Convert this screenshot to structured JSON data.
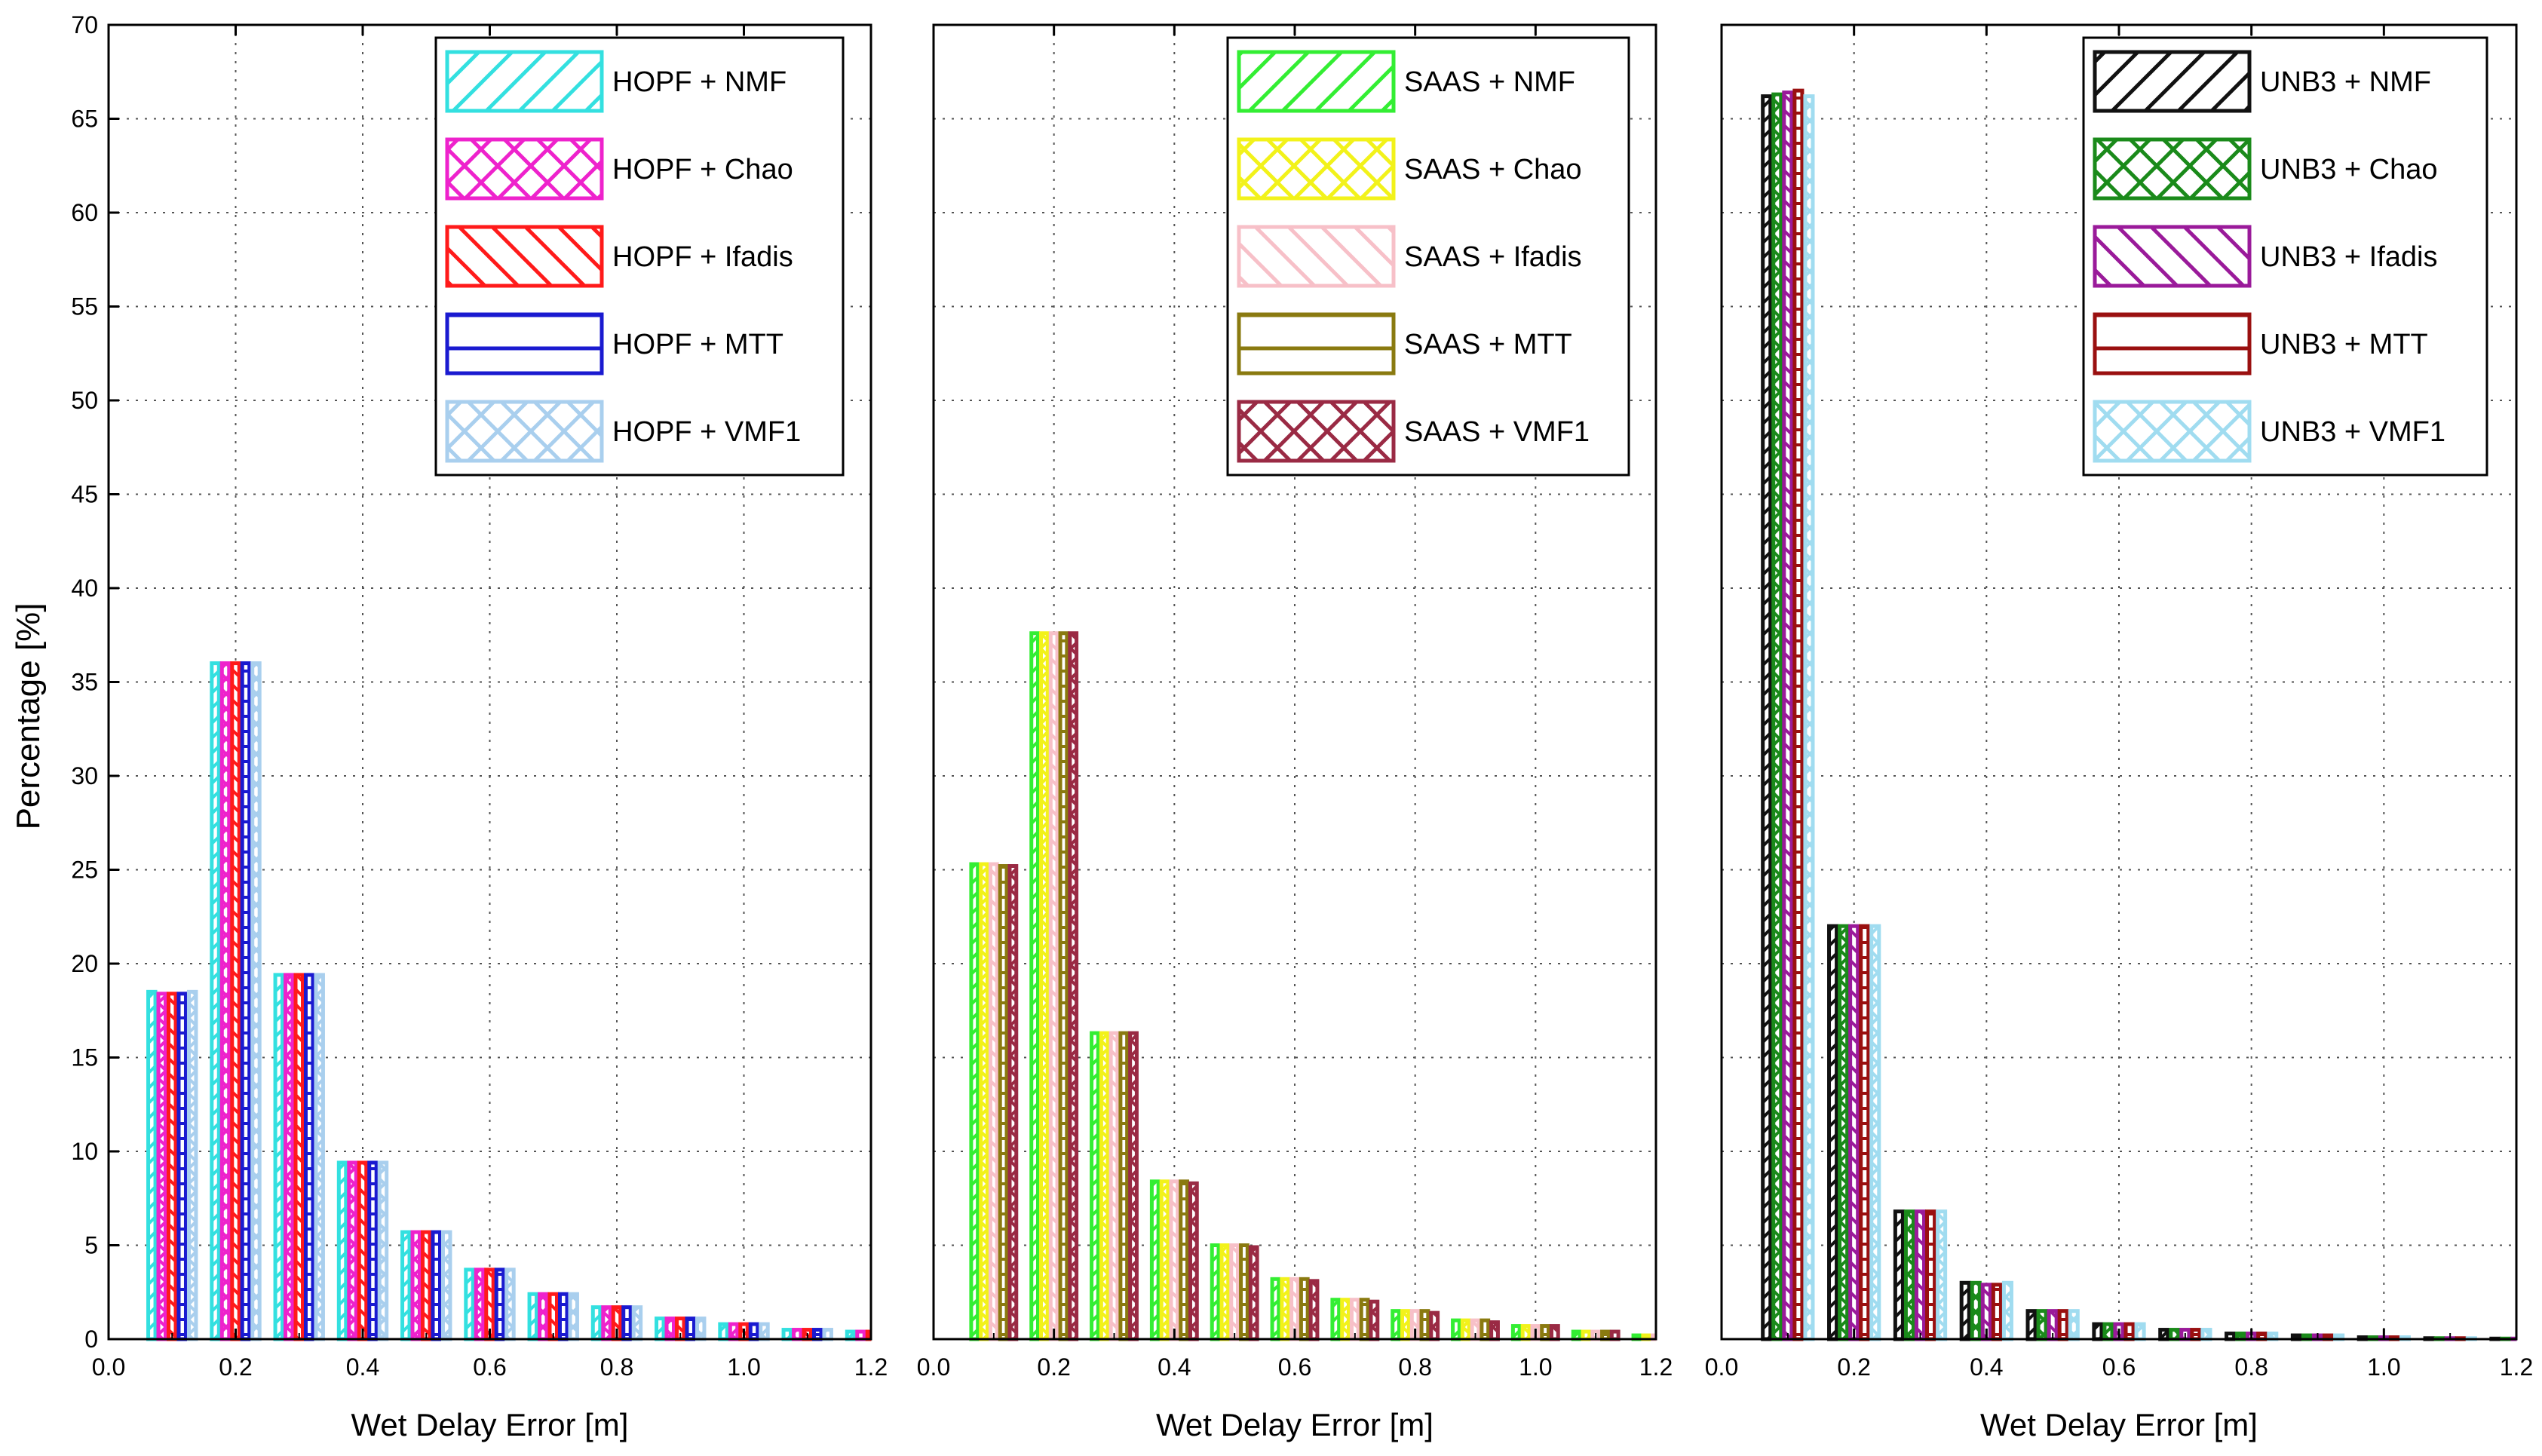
{
  "figure": {
    "ylabel": "Percentage [%]"
  },
  "chart_data": [
    {
      "type": "bar",
      "title": "",
      "xlabel": "Wet Delay Error [m]",
      "ylabel": "Percentage [%]",
      "xlim": [
        0.0,
        1.2
      ],
      "ylim": [
        0,
        70
      ],
      "xticks": [
        "0.0",
        "0.2",
        "0.4",
        "0.6",
        "0.8",
        "1.0",
        "1.2"
      ],
      "yticks": [
        "0",
        "5",
        "10",
        "15",
        "20",
        "25",
        "30",
        "35",
        "40",
        "45",
        "50",
        "55",
        "60",
        "65",
        "70"
      ],
      "grid": true,
      "legend_position": "top-right",
      "bin_centers": [
        0.1,
        0.2,
        0.3,
        0.4,
        0.5,
        0.6,
        0.7,
        0.8,
        0.9,
        1.0,
        1.1,
        1.2
      ],
      "bin_width": 0.1,
      "series": [
        {
          "name": "HOPF + NMF",
          "color": "#33e0e0",
          "pattern": "diag-fwd",
          "values": [
            18.5,
            36.0,
            19.4,
            9.4,
            5.7,
            3.7,
            2.4,
            1.7,
            1.1,
            0.8,
            0.5,
            0.4
          ]
        },
        {
          "name": "HOPF + Chao",
          "color": "#ee22cc",
          "pattern": "cross-hatch",
          "values": [
            18.4,
            36.0,
            19.4,
            9.4,
            5.7,
            3.7,
            2.4,
            1.7,
            1.1,
            0.8,
            0.5,
            0.4
          ]
        },
        {
          "name": "HOPF + Ifadis",
          "color": "#ff1a1a",
          "pattern": "diag-back",
          "values": [
            18.4,
            36.0,
            19.4,
            9.4,
            5.7,
            3.7,
            2.4,
            1.7,
            1.1,
            0.8,
            0.5,
            0.4
          ]
        },
        {
          "name": "HOPF + MTT",
          "color": "#1a1ad0",
          "pattern": "horizontal",
          "values": [
            18.4,
            36.0,
            19.4,
            9.4,
            5.7,
            3.7,
            2.4,
            1.7,
            1.1,
            0.8,
            0.5,
            0.4
          ]
        },
        {
          "name": "HOPF + VMF1",
          "color": "#a9cfee",
          "pattern": "cross-hatch",
          "values": [
            18.5,
            36.0,
            19.4,
            9.4,
            5.7,
            3.7,
            2.4,
            1.7,
            1.1,
            0.8,
            0.5,
            0.4
          ]
        }
      ]
    },
    {
      "type": "bar",
      "title": "",
      "xlabel": "Wet Delay Error [m]",
      "ylabel": "",
      "xlim": [
        0.0,
        1.2
      ],
      "ylim": [
        0,
        70
      ],
      "xticks": [
        "0.0",
        "0.2",
        "0.4",
        "0.6",
        "0.8",
        "1.0",
        "1.2"
      ],
      "yticks": [],
      "grid": true,
      "legend_position": "top-right",
      "bin_centers": [
        0.1,
        0.2,
        0.3,
        0.4,
        0.5,
        0.6,
        0.7,
        0.8,
        0.9,
        1.0,
        1.1,
        1.2
      ],
      "bin_width": 0.1,
      "series": [
        {
          "name": "SAAS + NMF",
          "color": "#33ee33",
          "pattern": "diag-fwd",
          "values": [
            25.3,
            37.6,
            16.3,
            8.4,
            5.0,
            3.2,
            2.1,
            1.5,
            1.0,
            0.7,
            0.4,
            0.2
          ]
        },
        {
          "name": "SAAS + Chao",
          "color": "#f2f21a",
          "pattern": "cross-hatch",
          "values": [
            25.3,
            37.6,
            16.3,
            8.4,
            5.0,
            3.2,
            2.1,
            1.5,
            1.0,
            0.7,
            0.4,
            0.2
          ]
        },
        {
          "name": "SAAS + Ifadis",
          "color": "#f7c0c8",
          "pattern": "diag-back",
          "values": [
            25.3,
            37.6,
            16.3,
            8.4,
            5.0,
            3.2,
            2.1,
            1.5,
            1.0,
            0.7,
            0.4,
            0.2
          ]
        },
        {
          "name": "SAAS + MTT",
          "color": "#8a7a10",
          "pattern": "horizontal",
          "values": [
            25.2,
            37.6,
            16.3,
            8.4,
            5.0,
            3.2,
            2.1,
            1.5,
            1.0,
            0.7,
            0.4,
            0.2
          ]
        },
        {
          "name": "SAAS + VMF1",
          "color": "#9a2a44",
          "pattern": "cross-hatch",
          "values": [
            25.2,
            37.6,
            16.3,
            8.3,
            4.9,
            3.1,
            2.0,
            1.4,
            0.9,
            0.7,
            0.4,
            0.2
          ]
        }
      ]
    },
    {
      "type": "bar",
      "title": "",
      "xlabel": "Wet Delay Error [m]",
      "ylabel": "",
      "xlim": [
        0.0,
        1.2
      ],
      "ylim": [
        0,
        70
      ],
      "xticks": [
        "0.0",
        "0.2",
        "0.4",
        "0.6",
        "0.8",
        "1.0",
        "1.2"
      ],
      "yticks": [],
      "grid": true,
      "legend_position": "top-right",
      "bin_centers": [
        0.1,
        0.2,
        0.3,
        0.4,
        0.5,
        0.6,
        0.7,
        0.8,
        0.9,
        1.0,
        1.1,
        1.2
      ],
      "bin_width": 0.1,
      "series": [
        {
          "name": "UNB3 + NMF",
          "color": "#111111",
          "pattern": "diag-fwd",
          "values": [
            66.2,
            22.0,
            6.8,
            3.0,
            1.5,
            0.8,
            0.5,
            0.3,
            0.2,
            0.1,
            0.05,
            0.03
          ]
        },
        {
          "name": "UNB3 + Chao",
          "color": "#1a8a1a",
          "pattern": "cross-hatch",
          "values": [
            66.3,
            22.0,
            6.8,
            3.0,
            1.5,
            0.8,
            0.5,
            0.3,
            0.2,
            0.1,
            0.05,
            0.03
          ]
        },
        {
          "name": "UNB3 + Ifadis",
          "color": "#9a1a9a",
          "pattern": "diag-back",
          "values": [
            66.4,
            22.0,
            6.8,
            2.9,
            1.5,
            0.8,
            0.5,
            0.3,
            0.2,
            0.1,
            0.05,
            0.03
          ]
        },
        {
          "name": "UNB3 + MTT",
          "color": "#9a1010",
          "pattern": "horizontal",
          "values": [
            66.5,
            22.0,
            6.8,
            2.9,
            1.5,
            0.8,
            0.5,
            0.3,
            0.2,
            0.1,
            0.05,
            0.03
          ]
        },
        {
          "name": "UNB3 + VMF1",
          "color": "#a0dcf0",
          "pattern": "cross-hatch",
          "values": [
            66.2,
            22.0,
            6.8,
            3.0,
            1.5,
            0.8,
            0.5,
            0.3,
            0.2,
            0.1,
            0.05,
            0.03
          ]
        }
      ]
    }
  ]
}
